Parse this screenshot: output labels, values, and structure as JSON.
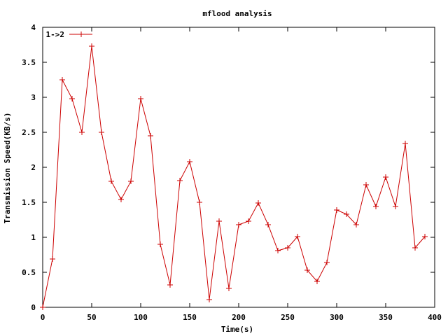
{
  "chart_data": {
    "type": "line",
    "title": "mflood analysis",
    "xlabel": "Time(s)",
    "ylabel": "Transmission Speed(KB/s)",
    "xlim": [
      0,
      400
    ],
    "ylim": [
      0,
      4
    ],
    "xticks": [
      0,
      50,
      100,
      150,
      200,
      250,
      300,
      350,
      400
    ],
    "yticks": [
      0,
      0.5,
      1,
      1.5,
      2,
      2.5,
      3,
      3.5,
      4
    ],
    "xtick_labels": [
      "0",
      "50",
      "100",
      "150",
      "200",
      "250",
      "300",
      "350",
      "400"
    ],
    "ytick_labels": [
      "0",
      "0.5",
      "1",
      "1.5",
      "2",
      "2.5",
      "3",
      "3.5",
      "4"
    ],
    "grid": false,
    "legend_position": "top-left",
    "series": [
      {
        "name": "1->2",
        "color": "#cc0000",
        "marker": "plus",
        "x": [
          0,
          10,
          20,
          30,
          40,
          50,
          60,
          70,
          80,
          90,
          100,
          110,
          120,
          130,
          140,
          150,
          160,
          170,
          180,
          190,
          200,
          210,
          220,
          230,
          240,
          250,
          260,
          270,
          280,
          290,
          300,
          310,
          320,
          330,
          340,
          350,
          360,
          370,
          380,
          390
        ],
        "y": [
          0,
          0.69,
          3.25,
          2.98,
          2.5,
          3.73,
          2.5,
          1.8,
          1.54,
          1.8,
          2.98,
          2.45,
          0.9,
          0.32,
          1.81,
          2.08,
          1.5,
          0.11,
          1.23,
          0.27,
          1.18,
          1.23,
          1.49,
          1.18,
          0.81,
          0.85,
          1.01,
          0.53,
          0.37,
          0.64,
          1.39,
          1.33,
          1.18,
          1.75,
          1.44,
          1.86,
          1.44,
          2.34,
          0.85,
          1.01
        ]
      }
    ]
  }
}
